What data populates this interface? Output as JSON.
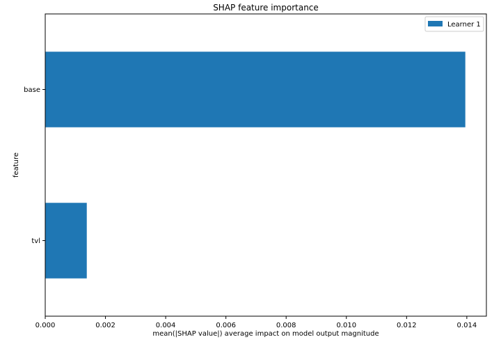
{
  "chart_data": {
    "type": "bar",
    "orientation": "horizontal",
    "title": "SHAP feature importance",
    "xlabel": "mean(|SHAP value|) average impact on model output magnitude",
    "ylabel": "feature",
    "categories": [
      "base",
      "tvl"
    ],
    "series": [
      {
        "name": "Learner 1",
        "values": [
          0.01395,
          0.00138
        ],
        "color": "#1f77b4"
      }
    ],
    "xlim": [
      0,
      0.01465
    ],
    "xticks": [
      0,
      0.002,
      0.004,
      0.006,
      0.008,
      0.01,
      0.012,
      0.014
    ],
    "xtick_labels": [
      "0.000",
      "0.002",
      "0.004",
      "0.006",
      "0.008",
      "0.010",
      "0.012",
      "0.014"
    ],
    "grid": false,
    "legend_position": "top-right"
  }
}
